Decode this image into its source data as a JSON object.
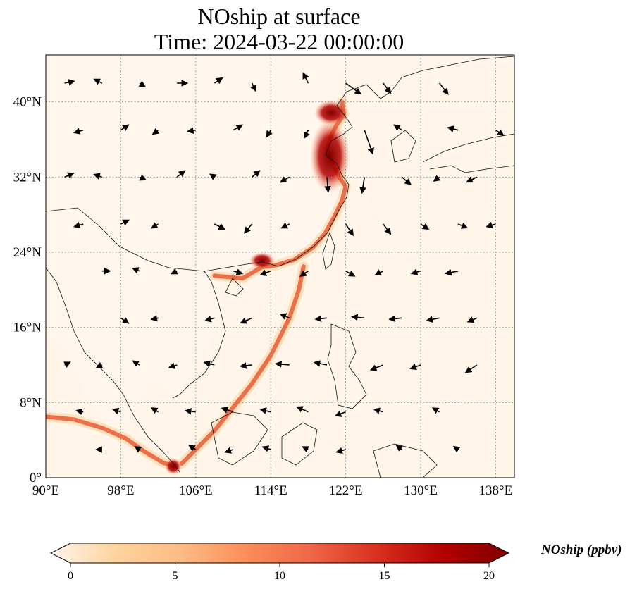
{
  "title": {
    "line1": "NOship at surface",
    "line2": "Time: 2024-03-22 00:00:00"
  },
  "map": {
    "lon_range": [
      90,
      140
    ],
    "lat_range": [
      0,
      45
    ],
    "x_ticks": [
      {
        "lon": 90,
        "label": "90°E"
      },
      {
        "lon": 98,
        "label": "98°E"
      },
      {
        "lon": 106,
        "label": "106°E"
      },
      {
        "lon": 114,
        "label": "114°E"
      },
      {
        "lon": 122,
        "label": "122°E"
      },
      {
        "lon": 130,
        "label": "130°E"
      },
      {
        "lon": 138,
        "label": "138°E"
      }
    ],
    "y_ticks": [
      {
        "lat": 0,
        "label": "0°"
      },
      {
        "lat": 8,
        "label": "8°N"
      },
      {
        "lat": 16,
        "label": "16°N"
      },
      {
        "lat": 24,
        "label": "24°N"
      },
      {
        "lat": 32,
        "label": "32°N"
      },
      {
        "lat": 40,
        "label": "40°N"
      }
    ],
    "gridlines": "dotted",
    "colors": {
      "background": "#fff5e8",
      "low": "#fdd9ae",
      "mid": "#e85a32",
      "high": "#7f0000",
      "coast": "#111111",
      "wind_arrow": "#000000"
    },
    "ship_tracks": [
      {
        "name": "china-coast",
        "points": [
          [
            108,
            21.5
          ],
          [
            111,
            21.2
          ],
          [
            113,
            22.4
          ],
          [
            114.5,
            22.6
          ],
          [
            116.5,
            23.2
          ],
          [
            118.5,
            24.5
          ],
          [
            119.8,
            26
          ],
          [
            120.8,
            27.8
          ],
          [
            121.6,
            29.5
          ],
          [
            122,
            31
          ],
          [
            121.3,
            32
          ],
          [
            120.6,
            33.5
          ],
          [
            120,
            35
          ],
          [
            120.4,
            36.3
          ],
          [
            121,
            37.5
          ],
          [
            121.8,
            38.6
          ],
          [
            121.6,
            40
          ]
        ]
      },
      {
        "name": "malacca",
        "points": [
          [
            90,
            6.5
          ],
          [
            93,
            6.2
          ],
          [
            96,
            5.3
          ],
          [
            98.5,
            4.2
          ],
          [
            100.5,
            2.8
          ],
          [
            102.5,
            1.6
          ],
          [
            103.8,
            1.2
          ]
        ]
      },
      {
        "name": "south-china-sea",
        "points": [
          [
            104.5,
            1.5
          ],
          [
            106,
            3
          ],
          [
            108,
            5
          ],
          [
            110,
            7.5
          ],
          [
            112,
            10
          ],
          [
            114,
            13
          ],
          [
            116,
            17
          ],
          [
            117,
            20
          ],
          [
            117.5,
            22.5
          ]
        ]
      }
    ],
    "wind": [
      [
        92,
        42,
        1.5,
        0.3
      ],
      [
        96,
        42,
        -1.2,
        0.6
      ],
      [
        100,
        42,
        0.8,
        -0.5
      ],
      [
        104,
        42,
        1.6,
        0
      ],
      [
        108,
        42,
        1.2,
        0.8
      ],
      [
        112,
        42,
        0.6,
        -1.2
      ],
      [
        118,
        42,
        -0.8,
        1.6
      ],
      [
        122,
        42,
        2.5,
        -1.8
      ],
      [
        126,
        42,
        1.2,
        -1.6
      ],
      [
        132,
        42,
        1.4,
        -1.8
      ],
      [
        94,
        37,
        -1.4,
        -0.4
      ],
      [
        98,
        37,
        1.2,
        0.8
      ],
      [
        102,
        37,
        -0.8,
        -0.6
      ],
      [
        106,
        37,
        -1.2,
        -0.2
      ],
      [
        110,
        37,
        1.4,
        0.8
      ],
      [
        114,
        37,
        -0.6,
        -1
      ],
      [
        118,
        37,
        -0.6,
        -1.2
      ],
      [
        124,
        37,
        1.4,
        -4
      ],
      [
        128,
        37,
        -1.2,
        0.8
      ],
      [
        134,
        37,
        -1.6,
        0.4
      ],
      [
        138,
        37,
        1.2,
        -0.8
      ],
      [
        92,
        32,
        1.4,
        0.6
      ],
      [
        96,
        32,
        -1.2,
        0.4
      ],
      [
        100,
        32,
        0.9,
        -0.4
      ],
      [
        104,
        32,
        1.2,
        1
      ],
      [
        108,
        32,
        -0.6,
        0.4
      ],
      [
        112,
        32,
        1.2,
        1
      ],
      [
        116,
        32,
        -1.4,
        -0.8
      ],
      [
        120,
        32,
        0.2,
        -2.4
      ],
      [
        124,
        32,
        -0.4,
        -2.6
      ],
      [
        128,
        32,
        1.4,
        -1.2
      ],
      [
        132,
        32,
        -0.8,
        -0.6
      ],
      [
        136,
        32,
        -1.6,
        -0.8
      ],
      [
        94,
        27,
        -1.4,
        -0.4
      ],
      [
        98,
        27,
        1.2,
        0.6
      ],
      [
        102,
        27,
        -1,
        -0.6
      ],
      [
        108,
        27,
        1.6,
        -0.8
      ],
      [
        112,
        27,
        -1.2,
        -1.4
      ],
      [
        116,
        27,
        -1.2,
        -0.6
      ],
      [
        122,
        27,
        1.2,
        -1.8
      ],
      [
        126,
        27,
        1.2,
        -1.6
      ],
      [
        130,
        27,
        1.2,
        -0.8
      ],
      [
        134,
        27,
        1.4,
        -0.6
      ],
      [
        138,
        27,
        -1.4,
        -0.4
      ],
      [
        96,
        22,
        1.2,
        0
      ],
      [
        100,
        22,
        -1,
        0.4
      ],
      [
        104,
        22,
        -0.8,
        -0.4
      ],
      [
        110,
        22,
        1.4,
        -0.4
      ],
      [
        114,
        22,
        -1.6,
        -0.6
      ],
      [
        118,
        22,
        -1.2,
        -0.8
      ],
      [
        122,
        22,
        1.4,
        -0.8
      ],
      [
        126,
        22,
        -1.2,
        -0.6
      ],
      [
        130,
        22,
        -1.4,
        -0.4
      ],
      [
        134,
        22,
        -2,
        -0.4
      ],
      [
        98,
        17,
        1.2,
        -0.8
      ],
      [
        102,
        17,
        -1,
        -0.2
      ],
      [
        108,
        17,
        -1.4,
        -0.4
      ],
      [
        112,
        17,
        -1.8,
        -0.8
      ],
      [
        116,
        17,
        -1.4,
        0.6
      ],
      [
        120,
        17,
        -1.8,
        -0.2
      ],
      [
        124,
        17,
        -2,
        0.2
      ],
      [
        128,
        17,
        -2,
        -0.2
      ],
      [
        132,
        17,
        -2,
        -0.4
      ],
      [
        136,
        17,
        -1.4,
        -0.6
      ],
      [
        92,
        12,
        0.8,
        0.4
      ],
      [
        96,
        12,
        -0.8,
        -0.4
      ],
      [
        100,
        12,
        -1,
        0.6
      ],
      [
        104,
        12,
        -1.2,
        -0.4
      ],
      [
        108,
        12,
        -1.6,
        0.4
      ],
      [
        112,
        12,
        -1.8,
        -0.2
      ],
      [
        116,
        12,
        -2.2,
        0.2
      ],
      [
        120,
        12,
        -2,
        0.4
      ],
      [
        126,
        12,
        -2,
        -0.8
      ],
      [
        130,
        12,
        -1.6,
        -0.6
      ],
      [
        136,
        12,
        -1.8,
        -1.2
      ],
      [
        94,
        7,
        -1,
        0.2
      ],
      [
        98,
        7,
        -1.2,
        0.4
      ],
      [
        102,
        7,
        -1,
        0.6
      ],
      [
        106,
        7,
        -1.6,
        0.2
      ],
      [
        110,
        7,
        -1.8,
        0.6
      ],
      [
        114,
        7,
        -1.6,
        0.4
      ],
      [
        118,
        7,
        -1.8,
        0.8
      ],
      [
        122,
        7,
        -1.6,
        -0.6
      ],
      [
        126,
        7,
        -1.4,
        0.4
      ],
      [
        132,
        7,
        -1,
        0.6
      ],
      [
        96,
        3,
        -0.8,
        0
      ],
      [
        100,
        3,
        -0.6,
        0.4
      ],
      [
        106,
        3,
        -1,
        0.6
      ],
      [
        110,
        3,
        -1.2,
        -0.4
      ],
      [
        114,
        3,
        -1.2,
        0.4
      ],
      [
        118,
        3,
        -0.8,
        0.4
      ],
      [
        122,
        3,
        -1.4,
        -0.4
      ],
      [
        128,
        3,
        -0.8,
        0.6
      ],
      [
        134,
        3,
        -0.6,
        0.4
      ]
    ]
  },
  "colorbar": {
    "title": "NOship (ppbv)",
    "ticks": [
      {
        "value": 0,
        "label": "0"
      },
      {
        "value": 5,
        "label": "5"
      },
      {
        "value": 10,
        "label": "10"
      },
      {
        "value": 15,
        "label": "15"
      },
      {
        "value": 20,
        "label": "20"
      }
    ],
    "range": [
      0,
      20
    ],
    "extend": "both",
    "colormap": [
      "#fff5eb",
      "#fdd49e",
      "#fdbb84",
      "#fc8d59",
      "#ef6548",
      "#d7301f",
      "#b30000",
      "#7f0000"
    ]
  }
}
